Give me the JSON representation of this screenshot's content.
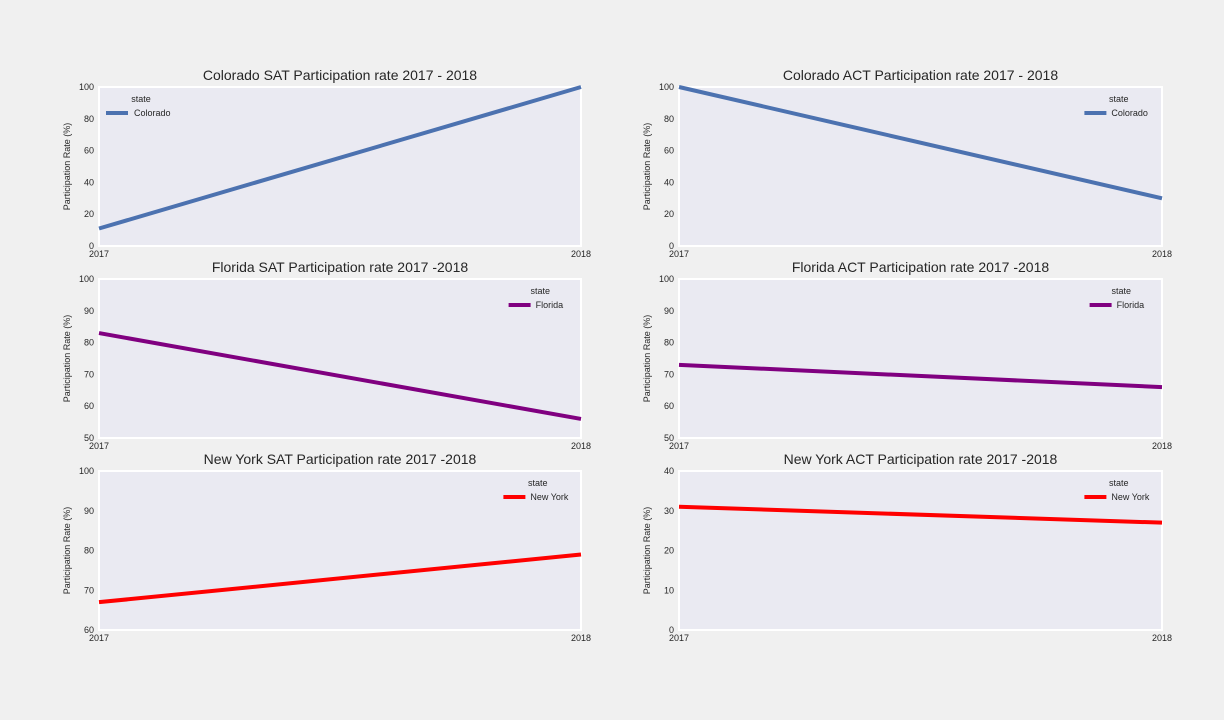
{
  "chart_data": [
    {
      "type": "line",
      "title": "Colorado SAT Participation rate 2017 - 2018",
      "xlabel": "",
      "ylabel": "Participation Rate (%)",
      "x": [
        "2017",
        "2018"
      ],
      "ylim": [
        0,
        100
      ],
      "yticks": [
        0,
        20,
        40,
        60,
        80,
        100
      ],
      "legend_title": "state",
      "legend_position": "top-left",
      "series": [
        {
          "name": "Colorado",
          "values": [
            11,
            100
          ],
          "color": "#4c72b0"
        }
      ]
    },
    {
      "type": "line",
      "title": "Colorado ACT Participation rate 2017 - 2018",
      "xlabel": "",
      "ylabel": "Participation Rate (%)",
      "x": [
        "2017",
        "2018"
      ],
      "ylim": [
        0,
        100
      ],
      "yticks": [
        0,
        20,
        40,
        60,
        80,
        100
      ],
      "legend_title": "state",
      "legend_position": "top-right",
      "series": [
        {
          "name": "Colorado",
          "values": [
            100,
            30
          ],
          "color": "#4c72b0"
        }
      ]
    },
    {
      "type": "line",
      "title": "Florida SAT Participation rate 2017 -2018",
      "xlabel": "",
      "ylabel": "Participation Rate (%)",
      "x": [
        "2017",
        "2018"
      ],
      "ylim": [
        50,
        100
      ],
      "yticks": [
        50,
        60,
        70,
        80,
        90,
        100
      ],
      "legend_title": "state",
      "legend_position": "top-right",
      "series": [
        {
          "name": "Florida",
          "values": [
            83,
            56
          ],
          "color": "#800080"
        }
      ]
    },
    {
      "type": "line",
      "title": "Florida ACT Participation rate 2017 -2018",
      "xlabel": "",
      "ylabel": "Participation Rate (%)",
      "x": [
        "2017",
        "2018"
      ],
      "ylim": [
        50,
        100
      ],
      "yticks": [
        50,
        60,
        70,
        80,
        90,
        100
      ],
      "legend_title": "state",
      "legend_position": "top-right",
      "series": [
        {
          "name": "Florida",
          "values": [
            73,
            66
          ],
          "color": "#800080"
        }
      ]
    },
    {
      "type": "line",
      "title": "New York SAT Participation rate 2017 -2018",
      "xlabel": "",
      "ylabel": "Participation Rate (%)",
      "x": [
        "2017",
        "2018"
      ],
      "ylim": [
        60,
        100
      ],
      "yticks": [
        60,
        70,
        80,
        90,
        100
      ],
      "legend_title": "state",
      "legend_position": "top-right",
      "series": [
        {
          "name": "New York",
          "values": [
            67,
            79
          ],
          "color": "#ff0000"
        }
      ]
    },
    {
      "type": "line",
      "title": "New York ACT Participation rate 2017 -2018",
      "xlabel": "",
      "ylabel": "Participation Rate (%)",
      "x": [
        "2017",
        "2018"
      ],
      "ylim": [
        0,
        40
      ],
      "yticks": [
        0,
        10,
        20,
        30,
        40
      ],
      "legend_title": "state",
      "legend_position": "top-right",
      "series": [
        {
          "name": "New York",
          "values": [
            31,
            27
          ],
          "color": "#ff0000"
        }
      ]
    }
  ],
  "style": {
    "figure_background": "#f0f0f0",
    "axes_background": "#eaeaf2",
    "axes_edge": "#ffffff",
    "text_color": "#262626"
  }
}
